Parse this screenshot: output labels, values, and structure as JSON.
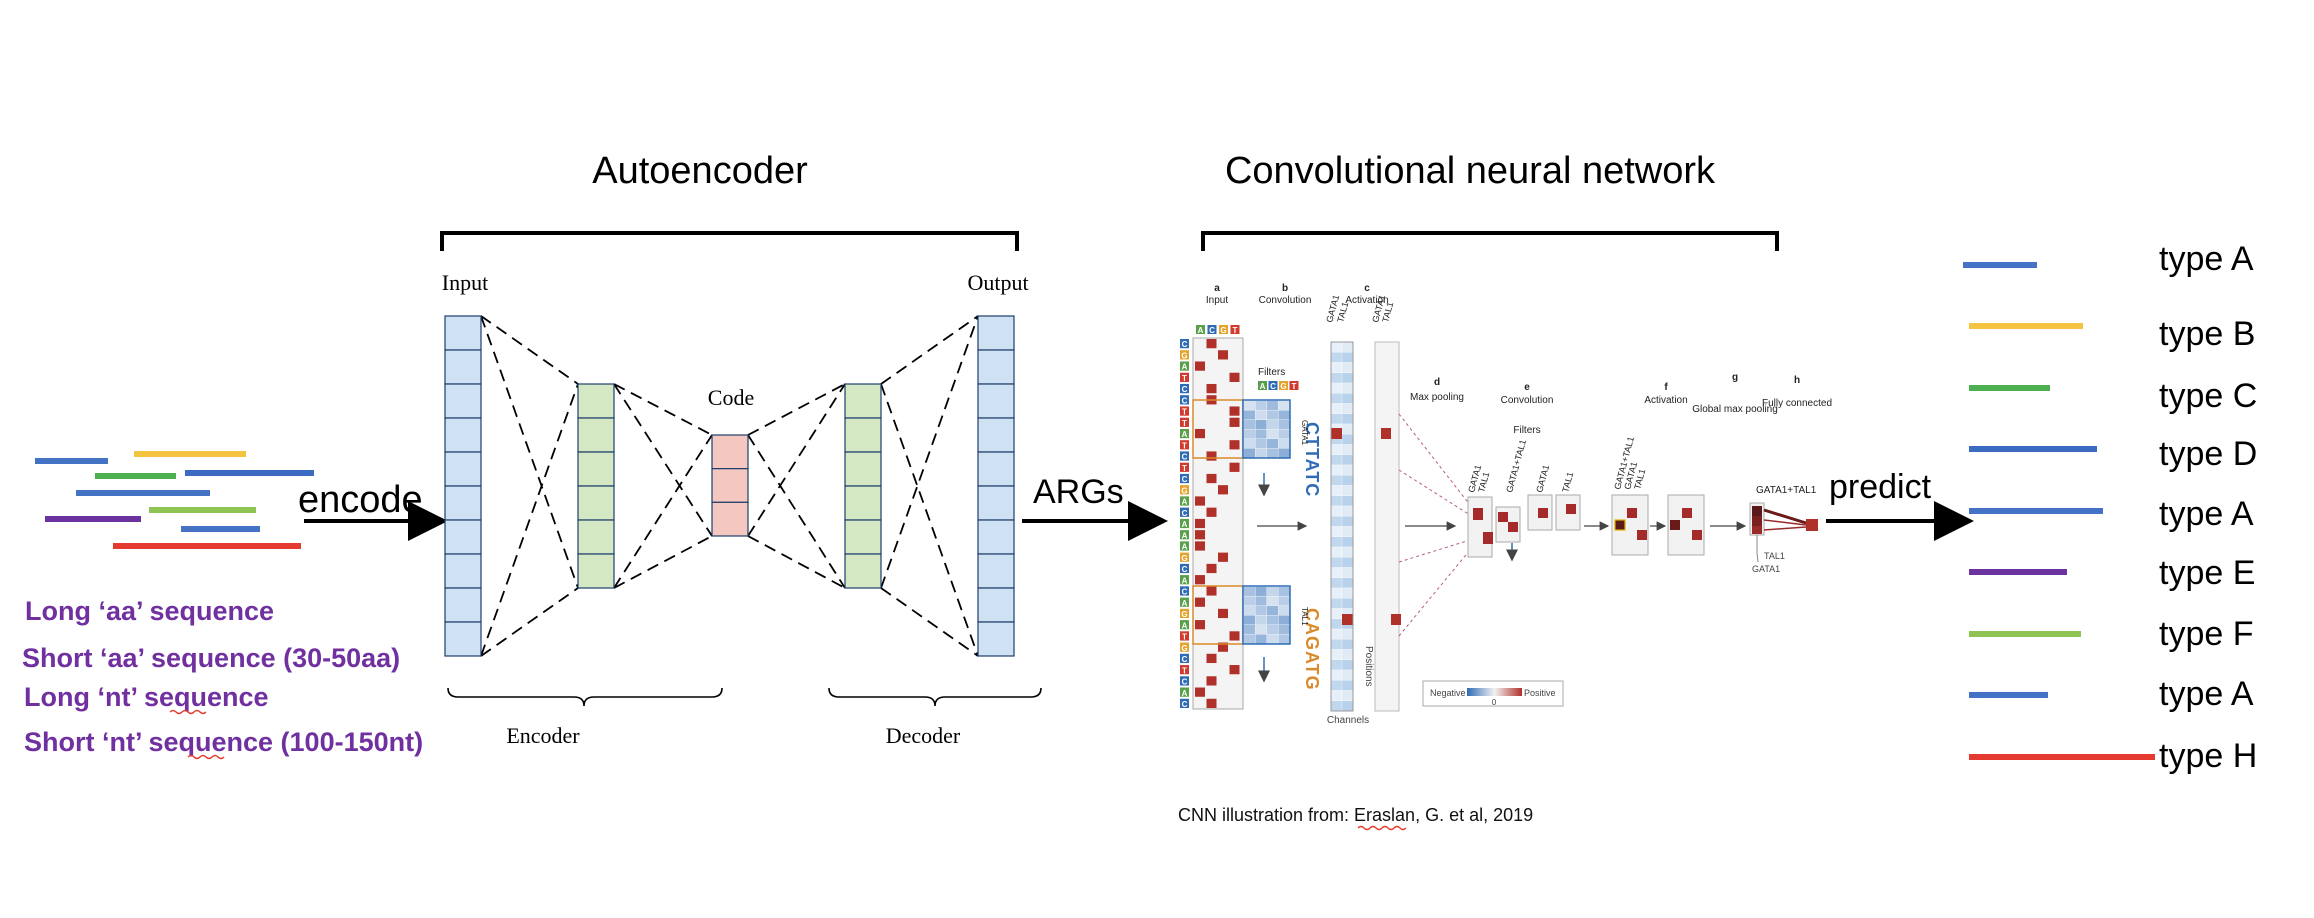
{
  "titles": {
    "autoencoder": "Autoencoder",
    "cnn": "Convolutional neural network"
  },
  "input_sequences": {
    "colors": [
      "#4472c4",
      "#f4c33f",
      "#4caf50",
      "#3b6cc1",
      "#4472c4",
      "#6b33a0",
      "#8fc454",
      "#4472c4",
      "#e53a2f"
    ],
    "labels": [
      "Long ‘aa’ sequence",
      "Short ‘aa’ sequence (30-50aa)",
      "Long ‘nt’ sequence",
      "Short ‘nt’ sequence (100-150nt)"
    ],
    "label_color": "#7030a0"
  },
  "arrows": {
    "encode": "encode",
    "args": "ARGs",
    "predict": "predict"
  },
  "autoencoder": {
    "input_label": "Input",
    "output_label": "Output",
    "code_label": "Code",
    "encoder_label": "Encoder",
    "decoder_label": "Decoder",
    "colors": {
      "io": "#cfe2f3",
      "hidden": "#d5e8c4",
      "code": "#f4c7c0"
    }
  },
  "cnn": {
    "panels": {
      "a": {
        "letter": "a",
        "name": "Input"
      },
      "b": {
        "letter": "b",
        "name": "Convolution"
      },
      "c": {
        "letter": "c",
        "name": "Activation"
      },
      "d": {
        "letter": "d",
        "name": "Max pooling"
      },
      "e": {
        "letter": "e",
        "name": "Convolution"
      },
      "f": {
        "letter": "f",
        "name": "Activation"
      },
      "g": {
        "letter": "g",
        "name": "Global max pooling"
      },
      "h": {
        "letter": "h",
        "name": "Fully connected"
      }
    },
    "filters_label": "Filters",
    "filters_label2": "Filters",
    "motif_top": "CTTATC",
    "motif_bottom": "CAGATG",
    "gata1": "GATA1",
    "tal1": "TAL1",
    "gata1_tal1": "GATA1+TAL1",
    "positions_label": "Positions",
    "channels_label": "Channels",
    "legend_negative": "Negative",
    "legend_positive": "Positive",
    "legend_zero": "0",
    "citation": "CNN illustration from: Eraslan, G. et al, 2019"
  },
  "outputs": [
    {
      "label": "type A",
      "color": "#4472c4"
    },
    {
      "label": "type B",
      "color": "#f4c33f"
    },
    {
      "label": "type C",
      "color": "#4caf50"
    },
    {
      "label": "type D",
      "color": "#3b6cc1"
    },
    {
      "label": "type A",
      "color": "#4472c4"
    },
    {
      "label": "type E",
      "color": "#6b33a0"
    },
    {
      "label": "type F",
      "color": "#8fc454"
    },
    {
      "label": "type A",
      "color": "#4472c4"
    },
    {
      "label": "type H",
      "color": "#e53a2f"
    }
  ]
}
